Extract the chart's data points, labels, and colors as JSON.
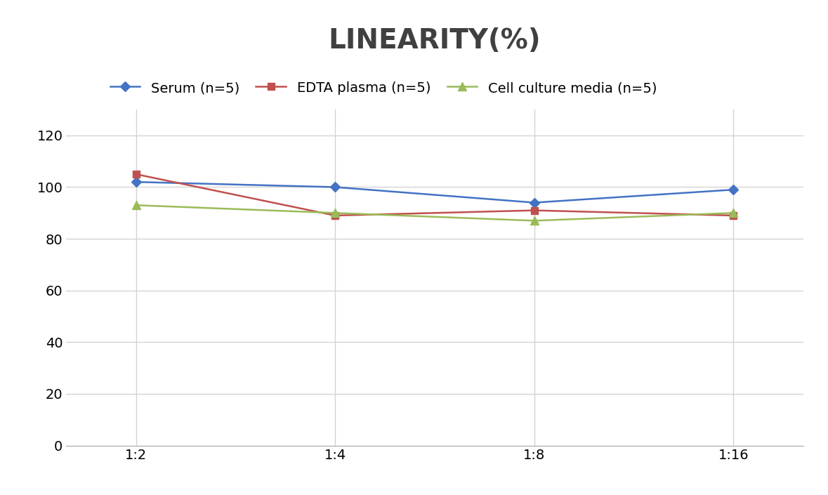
{
  "title": "LINEARITY(%)",
  "x_labels": [
    "1:2",
    "1:4",
    "1:8",
    "1:16"
  ],
  "x_positions": [
    0,
    1,
    2,
    3
  ],
  "series": [
    {
      "name": "Serum (n=5)",
      "values": [
        102,
        100,
        94,
        99
      ],
      "color": "#4472C4",
      "marker": "D",
      "markersize": 7,
      "linewidth": 1.8
    },
    {
      "name": "EDTA plasma (n=5)",
      "values": [
        105,
        89,
        91,
        89
      ],
      "color": "#C0504D",
      "marker": "s",
      "markersize": 7,
      "linewidth": 1.8
    },
    {
      "name": "Cell culture media (n=5)",
      "values": [
        93,
        90,
        87,
        90
      ],
      "color": "#9BBB59",
      "marker": "^",
      "markersize": 8,
      "linewidth": 1.8
    }
  ],
  "ylim": [
    0,
    130
  ],
  "yticks": [
    0,
    20,
    40,
    60,
    80,
    100,
    120
  ],
  "background_color": "#FFFFFF",
  "title_fontsize": 28,
  "legend_fontsize": 14,
  "tick_fontsize": 14,
  "grid_color": "#D3D3D3",
  "title_color": "#404040"
}
